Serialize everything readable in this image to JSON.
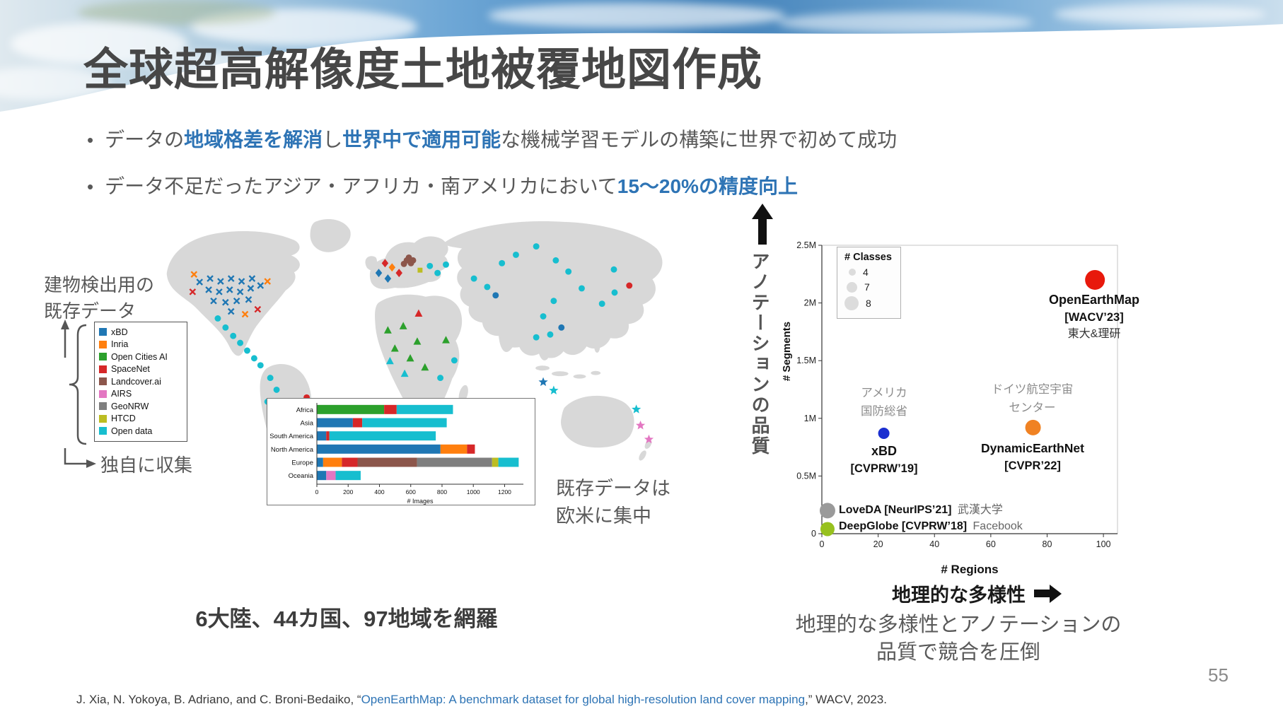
{
  "slide": {
    "title": "全球超高解像度土地被覆地図作成",
    "page_number": "55",
    "bullet_mark": "•",
    "bullets": {
      "b1": {
        "s0": "データの",
        "s1": "地域格差を解消",
        "s2": "し",
        "s3": "世界中で適用可能",
        "s4": "な機械学習モデルの構築に世界で初めて成功"
      },
      "b2": {
        "s0": "データ不足だったアジア・アフリカ・南アメリカにおいて",
        "s1": "15～20%の精度向上"
      }
    },
    "footer": {
      "pre": "J. Xia, N. Yokoya, B. Adriano, and C. Broni-Bedaiko, “",
      "link": "OpenEarthMap: A benchmark dataset for global high-resolution land cover mapping",
      "post": ",” WACV, 2023."
    },
    "colors": {
      "accent_blue": "#2e74b5",
      "title_gray": "#474747",
      "body_gray": "#595959"
    }
  },
  "map_panel": {
    "label_existing_line1": "建物検出用の",
    "label_existing_line2": "既存データ",
    "label_collected": "独自に収集",
    "note_line1": "既存データは",
    "note_line2": "欧米に集中",
    "caption": "6大陸、44カ国、97地域を網羅",
    "legend": [
      {
        "name": "xBD",
        "color": "#1f77b4"
      },
      {
        "name": "Inria",
        "color": "#ff7f0e"
      },
      {
        "name": "Open Cities AI",
        "color": "#2ca02c"
      },
      {
        "name": "SpaceNet",
        "color": "#d62728"
      },
      {
        "name": "Landcover.ai",
        "color": "#8c564b"
      },
      {
        "name": "AIRS",
        "color": "#e377c2"
      },
      {
        "name": "GeoNRW",
        "color": "#7f7f7f"
      },
      {
        "name": "HTCD",
        "color": "#bcbd22"
      },
      {
        "name": "Open data",
        "color": "#17becf"
      }
    ],
    "markers": [
      [
        "x",
        "#1f77b4",
        75,
        112
      ],
      [
        "x",
        "#1f77b4",
        90,
        107
      ],
      [
        "x",
        "#1f77b4",
        105,
        111
      ],
      [
        "x",
        "#1f77b4",
        120,
        107
      ],
      [
        "x",
        "#1f77b4",
        135,
        111
      ],
      [
        "x",
        "#1f77b4",
        150,
        107
      ],
      [
        "x",
        "#1f77b4",
        88,
        123
      ],
      [
        "x",
        "#1f77b4",
        103,
        126
      ],
      [
        "x",
        "#1f77b4",
        118,
        123
      ],
      [
        "x",
        "#1f77b4",
        133,
        126
      ],
      [
        "x",
        "#1f77b4",
        148,
        121
      ],
      [
        "x",
        "#1f77b4",
        162,
        117
      ],
      [
        "x",
        "#1f77b4",
        95,
        139
      ],
      [
        "x",
        "#1f77b4",
        112,
        141
      ],
      [
        "x",
        "#1f77b4",
        128,
        139
      ],
      [
        "x",
        "#1f77b4",
        145,
        137
      ],
      [
        "x",
        "#1f77b4",
        120,
        154
      ],
      [
        "x",
        "#ff7f0e",
        67,
        101
      ],
      [
        "x",
        "#ff7f0e",
        172,
        111
      ],
      [
        "x",
        "#ff7f0e",
        140,
        158
      ],
      [
        "x",
        "#d62728",
        65,
        126
      ],
      [
        "x",
        "#d62728",
        158,
        151
      ],
      [
        "circle",
        "#17becf",
        101,
        164
      ],
      [
        "circle",
        "#17becf",
        112,
        177
      ],
      [
        "circle",
        "#17becf",
        123,
        189
      ],
      [
        "circle",
        "#17becf",
        133,
        199
      ],
      [
        "circle",
        "#17becf",
        143,
        210
      ],
      [
        "circle",
        "#17becf",
        153,
        221
      ],
      [
        "circle",
        "#17becf",
        162,
        231
      ],
      [
        "circle",
        "#17becf",
        176,
        249
      ],
      [
        "circle",
        "#17becf",
        185,
        266
      ],
      [
        "circle",
        "#17becf",
        172,
        283
      ],
      [
        "circle",
        "#17becf",
        191,
        291
      ],
      [
        "circle",
        "#17becf",
        186,
        315
      ],
      [
        "circle",
        "#17becf",
        194,
        336
      ],
      [
        "circle",
        "#17becf",
        190,
        355
      ],
      [
        "circle",
        "#d62728",
        228,
        277
      ],
      [
        "diamond",
        "#1f77b4",
        331,
        99
      ],
      [
        "diamond",
        "#1f77b4",
        344,
        107
      ],
      [
        "diamond",
        "#d62728",
        340,
        85
      ],
      [
        "diamond",
        "#d62728",
        360,
        99
      ],
      [
        "diamond",
        "#ff7f0e",
        350,
        91
      ],
      [
        "circle",
        "#8c564b",
        371,
        81
      ],
      [
        "circle",
        "#8c564b",
        377,
        85
      ],
      [
        "circle",
        "#8c564b",
        367,
        86
      ],
      [
        "circle",
        "#8c564b",
        374,
        77
      ],
      [
        "circle",
        "#8c564b",
        380,
        81
      ],
      [
        "square",
        "#bcbd22",
        390,
        95
      ],
      [
        "circle",
        "#17becf",
        404,
        89
      ],
      [
        "circle",
        "#17becf",
        415,
        99
      ],
      [
        "circle",
        "#17becf",
        427,
        87
      ],
      [
        "triangle",
        "#d62728",
        388,
        157
      ],
      [
        "triangle",
        "#2ca02c",
        344,
        181
      ],
      [
        "triangle",
        "#2ca02c",
        366,
        175
      ],
      [
        "triangle",
        "#2ca02c",
        386,
        197
      ],
      [
        "triangle",
        "#2ca02c",
        354,
        207
      ],
      [
        "triangle",
        "#2ca02c",
        376,
        221
      ],
      [
        "triangle",
        "#2ca02c",
        397,
        234
      ],
      [
        "triangle",
        "#2ca02c",
        427,
        195
      ],
      [
        "triangle",
        "#17becf",
        347,
        225
      ],
      [
        "triangle",
        "#17becf",
        368,
        243
      ],
      [
        "circle",
        "#17becf",
        419,
        249
      ],
      [
        "circle",
        "#17becf",
        439,
        224
      ],
      [
        "circle",
        "#17becf",
        467,
        107
      ],
      [
        "circle",
        "#17becf",
        486,
        119
      ],
      [
        "circle",
        "#17becf",
        507,
        85
      ],
      [
        "circle",
        "#17becf",
        527,
        73
      ],
      [
        "circle",
        "#17becf",
        556,
        61
      ],
      [
        "circle",
        "#17becf",
        584,
        81
      ],
      [
        "circle",
        "#17becf",
        602,
        97
      ],
      [
        "circle",
        "#17becf",
        581,
        139
      ],
      [
        "circle",
        "#17becf",
        566,
        161
      ],
      [
        "circle",
        "#17becf",
        556,
        191
      ],
      [
        "circle",
        "#17becf",
        576,
        187
      ],
      [
        "circle",
        "#17becf",
        621,
        121
      ],
      [
        "circle",
        "#17becf",
        667,
        94
      ],
      [
        "circle",
        "#17becf",
        668,
        127
      ],
      [
        "circle",
        "#17becf",
        650,
        143
      ],
      [
        "circle",
        "#1f77b4",
        498,
        131
      ],
      [
        "circle",
        "#1f77b4",
        592,
        177
      ],
      [
        "circle",
        "#d62728",
        689,
        117
      ],
      [
        "star",
        "#1f77b4",
        566,
        255
      ],
      [
        "star",
        "#17becf",
        581,
        267
      ],
      [
        "star",
        "#17becf",
        699,
        294
      ],
      [
        "star",
        "#e377c2",
        705,
        317
      ],
      [
        "star",
        "#e377c2",
        717,
        337
      ]
    ]
  },
  "chart_data": [
    {
      "type": "bar",
      "orientation": "horizontal",
      "title": "",
      "categories": [
        "Africa",
        "Asia",
        "South America",
        "North America",
        "Europe",
        "Oceania"
      ],
      "xlabel": "# Images",
      "xlim": [
        0,
        1320
      ],
      "xticks": [
        0,
        200,
        400,
        600,
        800,
        1000,
        1200
      ],
      "series": [
        {
          "name": "xBD",
          "color": "#1f77b4",
          "values": [
            0,
            230,
            60,
            790,
            40,
            60
          ]
        },
        {
          "name": "Inria",
          "color": "#ff7f0e",
          "values": [
            0,
            0,
            0,
            170,
            120,
            0
          ]
        },
        {
          "name": "Open Cities AI",
          "color": "#2ca02c",
          "values": [
            430,
            0,
            0,
            0,
            0,
            0
          ]
        },
        {
          "name": "SpaceNet",
          "color": "#d62728",
          "values": [
            80,
            60,
            20,
            50,
            100,
            0
          ]
        },
        {
          "name": "Landcover.ai",
          "color": "#8c564b",
          "values": [
            0,
            0,
            0,
            0,
            380,
            0
          ]
        },
        {
          "name": "AIRS",
          "color": "#e377c2",
          "values": [
            0,
            0,
            0,
            0,
            0,
            60
          ]
        },
        {
          "name": "GeoNRW",
          "color": "#7f7f7f",
          "values": [
            0,
            0,
            0,
            0,
            480,
            0
          ]
        },
        {
          "name": "HTCD",
          "color": "#bcbd22",
          "values": [
            0,
            0,
            0,
            0,
            40,
            0
          ]
        },
        {
          "name": "Open data",
          "color": "#17becf",
          "values": [
            360,
            540,
            680,
            0,
            130,
            160
          ]
        }
      ]
    },
    {
      "type": "scatter",
      "xlabel": "# Regions",
      "ylabel": "# Segments",
      "xlim": [
        0,
        105
      ],
      "ylim": [
        0,
        2500000
      ],
      "xticks": [
        0,
        20,
        40,
        60,
        80,
        100
      ],
      "yticks": [
        [
          0,
          "0"
        ],
        [
          500000,
          "0.5M"
        ],
        [
          1000000,
          "1M"
        ],
        [
          1500000,
          "1.5M"
        ],
        [
          2000000,
          "2M"
        ],
        [
          2500000,
          "2.5M"
        ]
      ],
      "points": [
        {
          "name": "OpenEarthMap",
          "x": 97,
          "y_segments": 2200000,
          "r": 14,
          "color": "#e8190c"
        },
        {
          "name": "xBD",
          "x": 22,
          "y_segments": 870000,
          "r": 8,
          "color": "#1b2fd0"
        },
        {
          "name": "DynamicEarthNet",
          "x": 75,
          "y_segments": 920000,
          "r": 11,
          "color": "#f08223"
        },
        {
          "name": "LoveDA",
          "x": 2,
          "y_segments": 200000,
          "r": 11,
          "color": "#9a9a9a"
        },
        {
          "name": "DeepGlobe",
          "x": 2,
          "y_segments": 40000,
          "r": 10,
          "color": "#97c11f"
        }
      ]
    }
  ],
  "scatter_panel": {
    "quality_axis_label": "アノテーションの品質",
    "segments_axis_label": "# Segments",
    "regions_axis_label": "# Regions",
    "diversity_label": "地理的な多様性",
    "caption_line1": "地理的な多様性とアノテーションの",
    "caption_line2": "品質で競合を圧倒",
    "classes_legend": {
      "title": "# Classes",
      "items": [
        {
          "label": "4"
        },
        {
          "label": "7"
        },
        {
          "label": "8"
        }
      ]
    },
    "labels": {
      "oem_l1": "OpenEarthMap",
      "oem_l2": "[WACV’23]",
      "oem_l3": "東大&理研",
      "xbd_org_l1": "アメリカ",
      "xbd_org_l2": "国防総省",
      "xbd_l1": "xBD",
      "xbd_l2": "[CVPRW’19]",
      "den_org_l1": "ドイツ航空宇宙",
      "den_org_l2": "センター",
      "den_l1": "DynamicEarthNet",
      "den_l2": "[CVPR’22]",
      "loveda_name": "LoveDA [NeurIPS’21]",
      "loveda_org": "武漢大学",
      "deepglobe_name": "DeepGlobe [CVPRW’18]",
      "deepglobe_org": "Facebook"
    }
  }
}
